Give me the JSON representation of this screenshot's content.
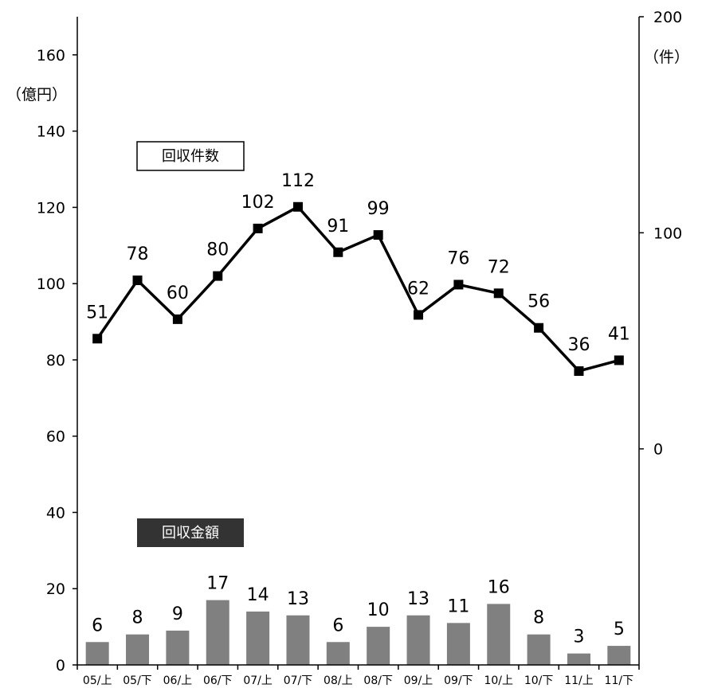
{
  "chart_data": {
    "type": "bar+line",
    "categories": [
      "05/上",
      "05/下",
      "06/上",
      "06/下",
      "07/上",
      "07/下",
      "08/上",
      "08/下",
      "09/上",
      "09/下",
      "10/上",
      "10/下",
      "11/上",
      "11/下"
    ],
    "series": [
      {
        "name": "回収金額",
        "type": "bar",
        "axis": "left",
        "values": [
          6,
          8,
          9,
          17,
          14,
          13,
          6,
          10,
          13,
          11,
          16,
          8,
          3,
          5
        ],
        "color": "#808080"
      },
      {
        "name": "回収件数",
        "type": "line",
        "axis": "right",
        "values": [
          51,
          78,
          60,
          80,
          102,
          112,
          91,
          99,
          62,
          76,
          72,
          56,
          36,
          41
        ],
        "color": "#000000"
      }
    ],
    "left_axis": {
      "unit_label": "（億円）",
      "range": [
        0,
        170
      ],
      "ticks": [
        0,
        20,
        40,
        60,
        80,
        100,
        120,
        140,
        160
      ]
    },
    "right_axis": {
      "unit_label": "（件）",
      "range": [
        -100,
        200
      ],
      "ticks": [
        0,
        100,
        200
      ]
    },
    "legend": {
      "line_label": "回収件数",
      "bar_label": "回収金額"
    },
    "grid": false
  }
}
